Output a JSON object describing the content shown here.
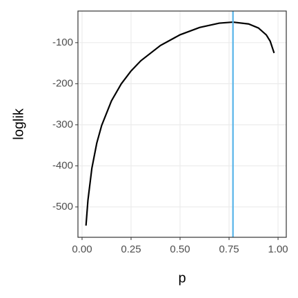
{
  "chart_data": {
    "type": "line",
    "x_label": "p",
    "y_label": "loglik",
    "x": [
      0.02,
      0.03,
      0.05,
      0.075,
      0.1,
      0.15,
      0.2,
      0.25,
      0.3,
      0.4,
      0.5,
      0.6,
      0.7,
      0.77,
      0.85,
      0.9,
      0.94,
      0.96,
      0.98
    ],
    "series": [
      {
        "color": "#000000",
        "values": [
          -545.5,
          -483.6,
          -405.9,
          -344.7,
          -301.6,
          -241.8,
          -200.3,
          -168.9,
          -144.0,
          -106.8,
          -80.8,
          -63.0,
          -52.5,
          -50.0,
          -54.5,
          -64.3,
          -81.1,
          -96.5,
          -125.3
        ]
      }
    ],
    "vline": {
      "value": 0.77,
      "color": "#56B4E9"
    },
    "xlim": [
      -0.021,
      1.042
    ],
    "ylim": [
      -574,
      -23
    ],
    "xticks": [
      {
        "value": 0,
        "label": "0.00"
      },
      0.25,
      {
        "value": 0.5,
        "label": "0.50"
      },
      0.75,
      {
        "value": 1,
        "label": "1.00"
      }
    ],
    "yticks": [
      -500,
      -400,
      -300,
      -200,
      -100
    ],
    "grid": true
  }
}
